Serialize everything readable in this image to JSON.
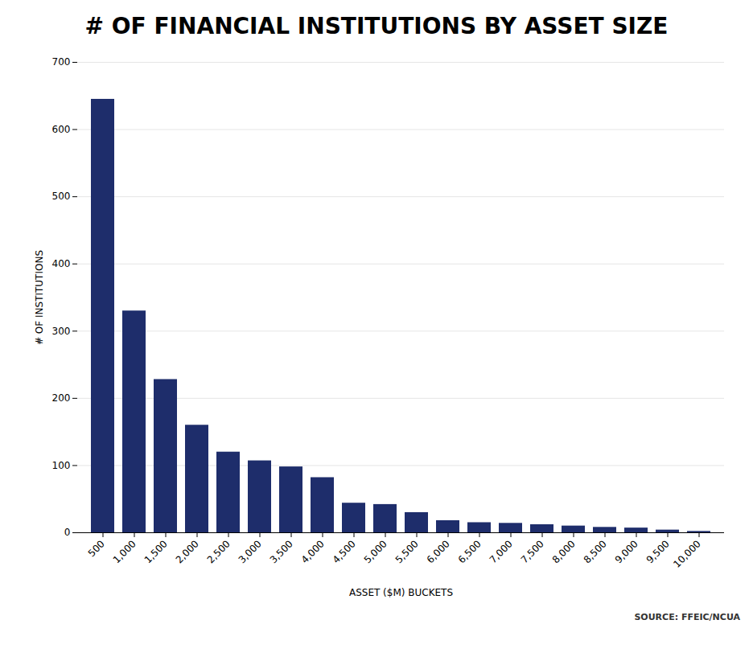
{
  "chart_data": {
    "type": "bar",
    "title": "# OF FINANCIAL INSTITUTIONS BY ASSET SIZE",
    "xlabel": "ASSET ($M) BUCKETS",
    "ylabel": "# OF INSTITUTIONS",
    "source": "SOURCE: FFEIC/NCUA",
    "categories": [
      "500",
      "1,000",
      "1,500",
      "2,000",
      "2,500",
      "3,000",
      "3,500",
      "4,000",
      "4,500",
      "5,000",
      "5,500",
      "6,000",
      "6,500",
      "7,000",
      "7,500",
      "8,000",
      "8,500",
      "9,000",
      "9,500",
      "10,000"
    ],
    "values": [
      645,
      330,
      228,
      160,
      120,
      107,
      98,
      82,
      44,
      42,
      30,
      18,
      15,
      14,
      12,
      10,
      8,
      7,
      4,
      2
    ],
    "color": "#1E2D6B",
    "ylim": [
      0,
      700
    ],
    "yticks": [
      0,
      100,
      200,
      300,
      400,
      500,
      600,
      700
    ],
    "grid": true
  }
}
